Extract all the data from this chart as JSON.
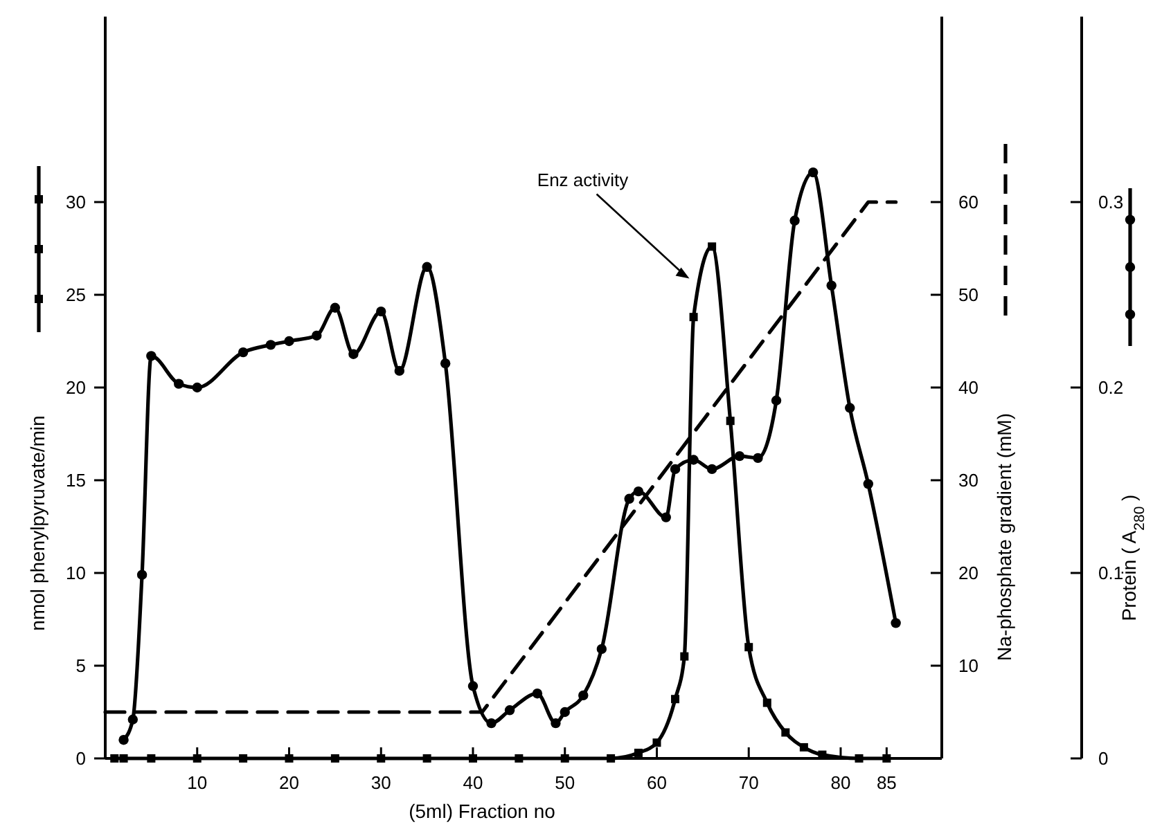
{
  "chart_data": {
    "type": "line",
    "xlabel": "(5ml) Fraction no",
    "ylabel": "nmol phenylpyruvate/min",
    "y2label": "Na-phosphate gradient (mM)",
    "y3label": "Protein ( A$_{280}$ )",
    "xlim": [
      0,
      91
    ],
    "xticks": [
      10,
      20,
      30,
      40,
      50,
      60,
      70,
      80,
      85
    ],
    "ylim": [
      0,
      40
    ],
    "yticks": [
      0,
      5,
      10,
      15,
      20,
      25,
      30
    ],
    "y2lim": [
      0,
      80
    ],
    "y2ticks": [
      {
        "value": 0,
        "label": null
      },
      10,
      20,
      30,
      40,
      50,
      60
    ],
    "y3lim": [
      0,
      0.4
    ],
    "y3ticks": [
      0,
      0.1,
      0.2,
      0.3
    ],
    "grid": false,
    "annotations": [
      {
        "text": "Enz activity",
        "x": 64,
        "y": 25.8
      }
    ],
    "series": [
      {
        "color": "#000000",
        "marker": "square",
        "line_style": "solid",
        "axis": "y",
        "x": [
          1,
          2,
          5,
          10,
          15,
          20,
          25,
          30,
          35,
          40,
          45,
          50,
          55,
          58,
          60,
          62,
          63,
          64,
          66,
          68,
          70,
          72,
          74,
          76,
          78,
          82,
          85
        ],
        "values": [
          0,
          0,
          0,
          0,
          0,
          0,
          0,
          0,
          0,
          0,
          0,
          0,
          0,
          0.3,
          0.85,
          3.2,
          5.5,
          23.8,
          27.6,
          18.2,
          6,
          3,
          1.4,
          0.6,
          0.2,
          0,
          0
        ]
      },
      {
        "color": "#000000",
        "marker": "none",
        "line_style": "dashed",
        "axis": "y2",
        "x": [
          0,
          41,
          83,
          86
        ],
        "values": [
          5,
          5,
          60,
          60
        ]
      },
      {
        "color": "#000000",
        "marker": "circle",
        "line_style": "solid",
        "axis": "y3",
        "x": [
          2,
          3,
          4,
          5,
          8,
          10,
          15,
          18,
          20,
          23,
          25,
          27,
          30,
          32,
          35,
          37,
          40,
          42,
          44,
          47,
          49,
          50,
          52,
          54,
          57,
          58,
          61,
          62,
          64,
          66,
          69,
          71,
          73,
          75,
          77,
          79,
          81,
          83,
          86
        ],
        "values": [
          0.01,
          0.021,
          0.099,
          0.217,
          0.202,
          0.2,
          0.219,
          0.223,
          0.225,
          0.228,
          0.243,
          0.218,
          0.241,
          0.209,
          0.265,
          0.213,
          0.039,
          0.019,
          0.026,
          0.035,
          0.019,
          0.025,
          0.034,
          0.059,
          0.14,
          0.144,
          0.13,
          0.156,
          0.161,
          0.156,
          0.163,
          0.162,
          0.193,
          0.29,
          0.316,
          0.255,
          0.189,
          0.148,
          0.073
        ]
      }
    ]
  }
}
